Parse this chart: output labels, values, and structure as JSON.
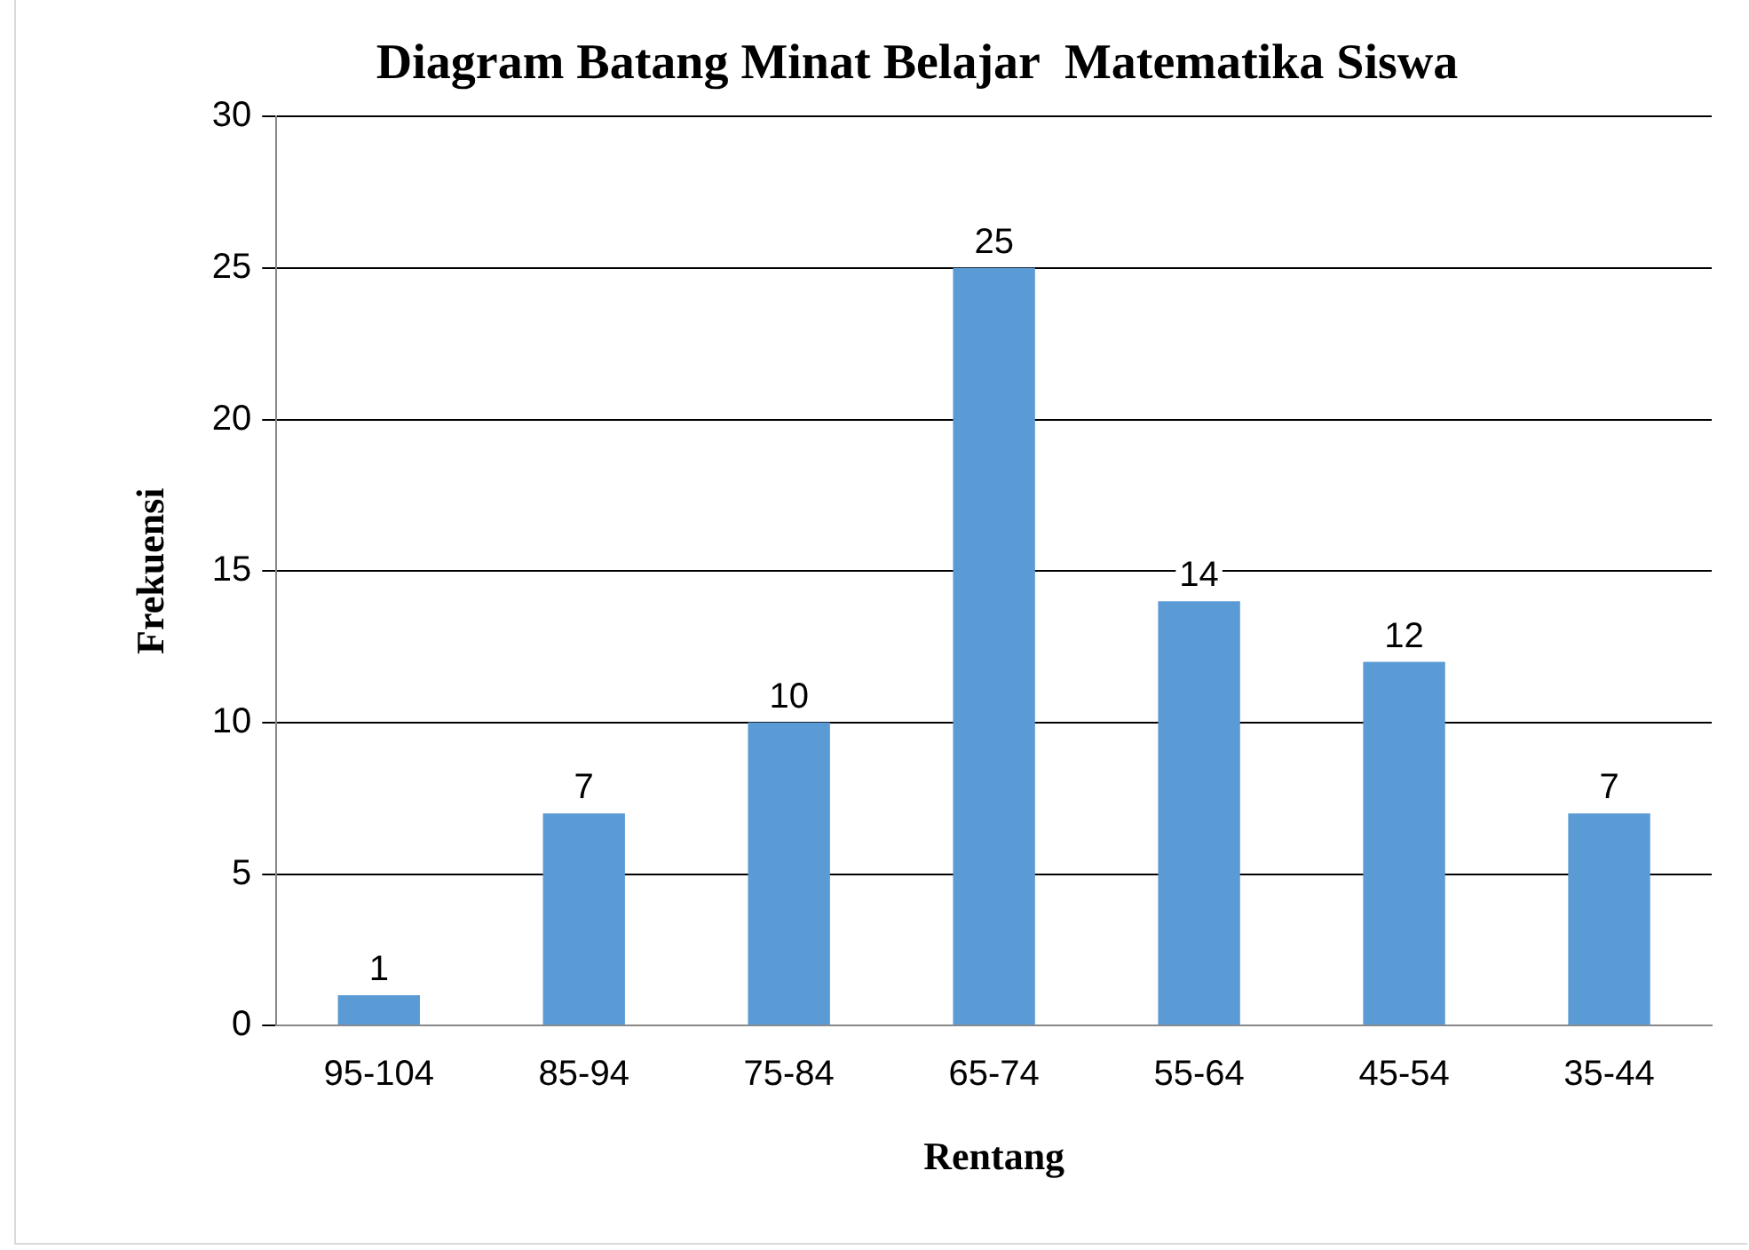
{
  "chart_data": {
    "type": "bar",
    "title": "Diagram Batang Minat Belajar  Matematika Siswa",
    "xlabel": "Rentang",
    "ylabel": "Frekuensi",
    "categories": [
      "95-104",
      "85-94",
      "75-84",
      "65-74",
      "55-64",
      "45-54",
      "35-44"
    ],
    "values": [
      1,
      7,
      10,
      25,
      14,
      12,
      7
    ],
    "color": "#5b9bd5",
    "ylim": [
      0,
      30
    ],
    "yticks": [
      0,
      5,
      10,
      15,
      20,
      25,
      30
    ],
    "grid": "y",
    "data_labels": true,
    "legend": false
  }
}
